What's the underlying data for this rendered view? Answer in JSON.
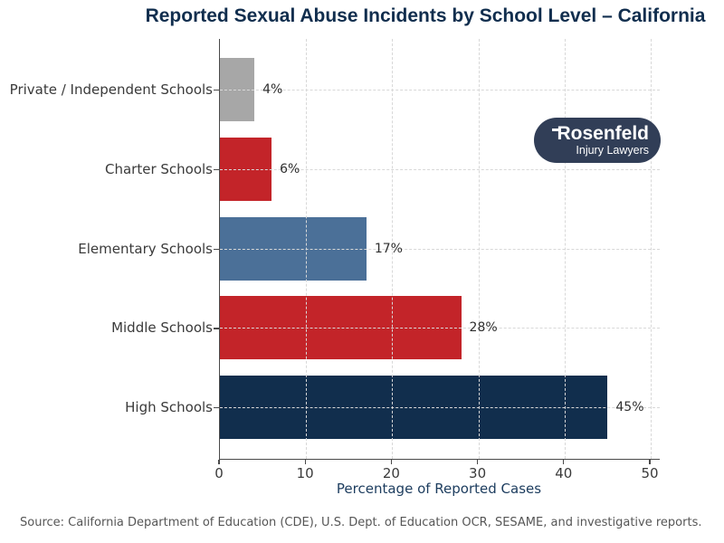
{
  "title": "Reported Sexual Abuse Incidents by School Level – California",
  "logo": {
    "name": "Rosenfeld",
    "subtitle": "Injury Lawyers"
  },
  "footer": {
    "source": "Source: California Department of Education (CDE), U.S. Dept. of Education OCR, SESAME, and investigative reports."
  },
  "chart_data": {
    "type": "bar",
    "orientation": "horizontal",
    "title": "Reported Sexual Abuse Incidents by School Level – California",
    "categories": [
      "Private / Independent Schools",
      "Charter Schools",
      "Elementary Schools",
      "Middle Schools",
      "High Schools"
    ],
    "values": [
      4,
      6,
      17,
      28,
      45
    ],
    "value_labels": [
      "4%",
      "6%",
      "17%",
      "28%",
      "45%"
    ],
    "bar_colors": [
      "#a7a7a7",
      "#c32429",
      "#4b7098",
      "#c32429",
      "#112e4d"
    ],
    "xlabel": "Percentage of Reported Cases",
    "xlim": [
      0,
      50
    ],
    "xticks": [
      0,
      10,
      20,
      30,
      40,
      50
    ],
    "grid": {
      "style": "dashed",
      "color": "#d8d8d8",
      "vertical": true,
      "horizontal": true,
      "drawn_over_bars": true
    },
    "legend": null
  },
  "colors": {
    "title": "#112e4e",
    "xlabel": "#1c3c5e",
    "axis_spine": "#4a4a4a",
    "tick_label": "#3a3a3a",
    "category_label": "#3a3a3a",
    "value_label": "#2e2e2e",
    "source_text": "#565656",
    "grid": "#d8d8d8",
    "logo_background": "#313e57",
    "logo_text": "#ffffff",
    "page_background": "#ffffff"
  }
}
